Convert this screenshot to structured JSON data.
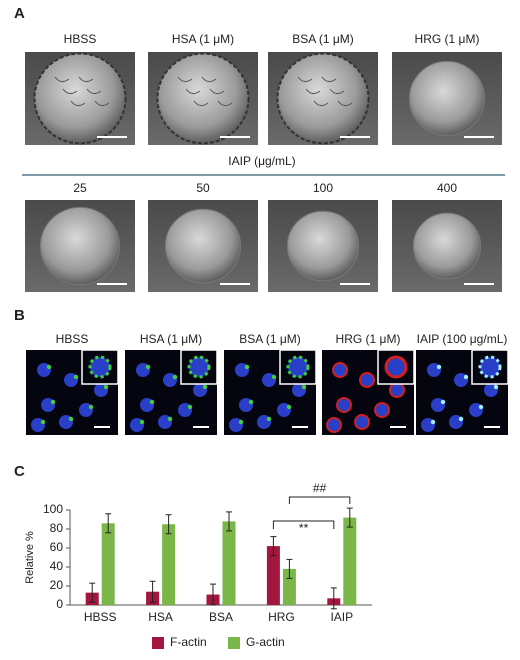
{
  "panel_a": {
    "label": "A",
    "row1": [
      "HBSS",
      "HSA (1 μM)",
      "BSA (1 μM)",
      "HRG (1 μM)"
    ],
    "row2_title": "IAIP (μg/mL)",
    "row2": [
      "25",
      "50",
      "100",
      "400"
    ]
  },
  "panel_b": {
    "label": "B",
    "columns": [
      "HBSS",
      "HSA (1 μM)",
      "BSA (1 μM)",
      "HRG (1 μM)",
      "IAIP (100 μg/mL)"
    ]
  },
  "panel_c": {
    "label": "C"
  },
  "chart_data": {
    "type": "bar",
    "y_label": "Relative %",
    "categories": [
      "HBSS",
      "HSA",
      "BSA",
      "HRG",
      "IAIP"
    ],
    "series": [
      {
        "name": "F-actin",
        "color": "#a3173f",
        "values": [
          13,
          14,
          11,
          62,
          7
        ],
        "errors": [
          10,
          11,
          11,
          10,
          11
        ]
      },
      {
        "name": "G-actin",
        "color": "#7ab648",
        "values": [
          86,
          85,
          88,
          38,
          92
        ],
        "errors": [
          10,
          10,
          10,
          10,
          10
        ]
      }
    ],
    "ylim": [
      0,
      100
    ],
    "yticks": [
      0,
      20,
      40,
      60,
      80,
      100
    ],
    "grid": false,
    "legend": "bottom",
    "annotations": [
      "**",
      "##"
    ]
  }
}
